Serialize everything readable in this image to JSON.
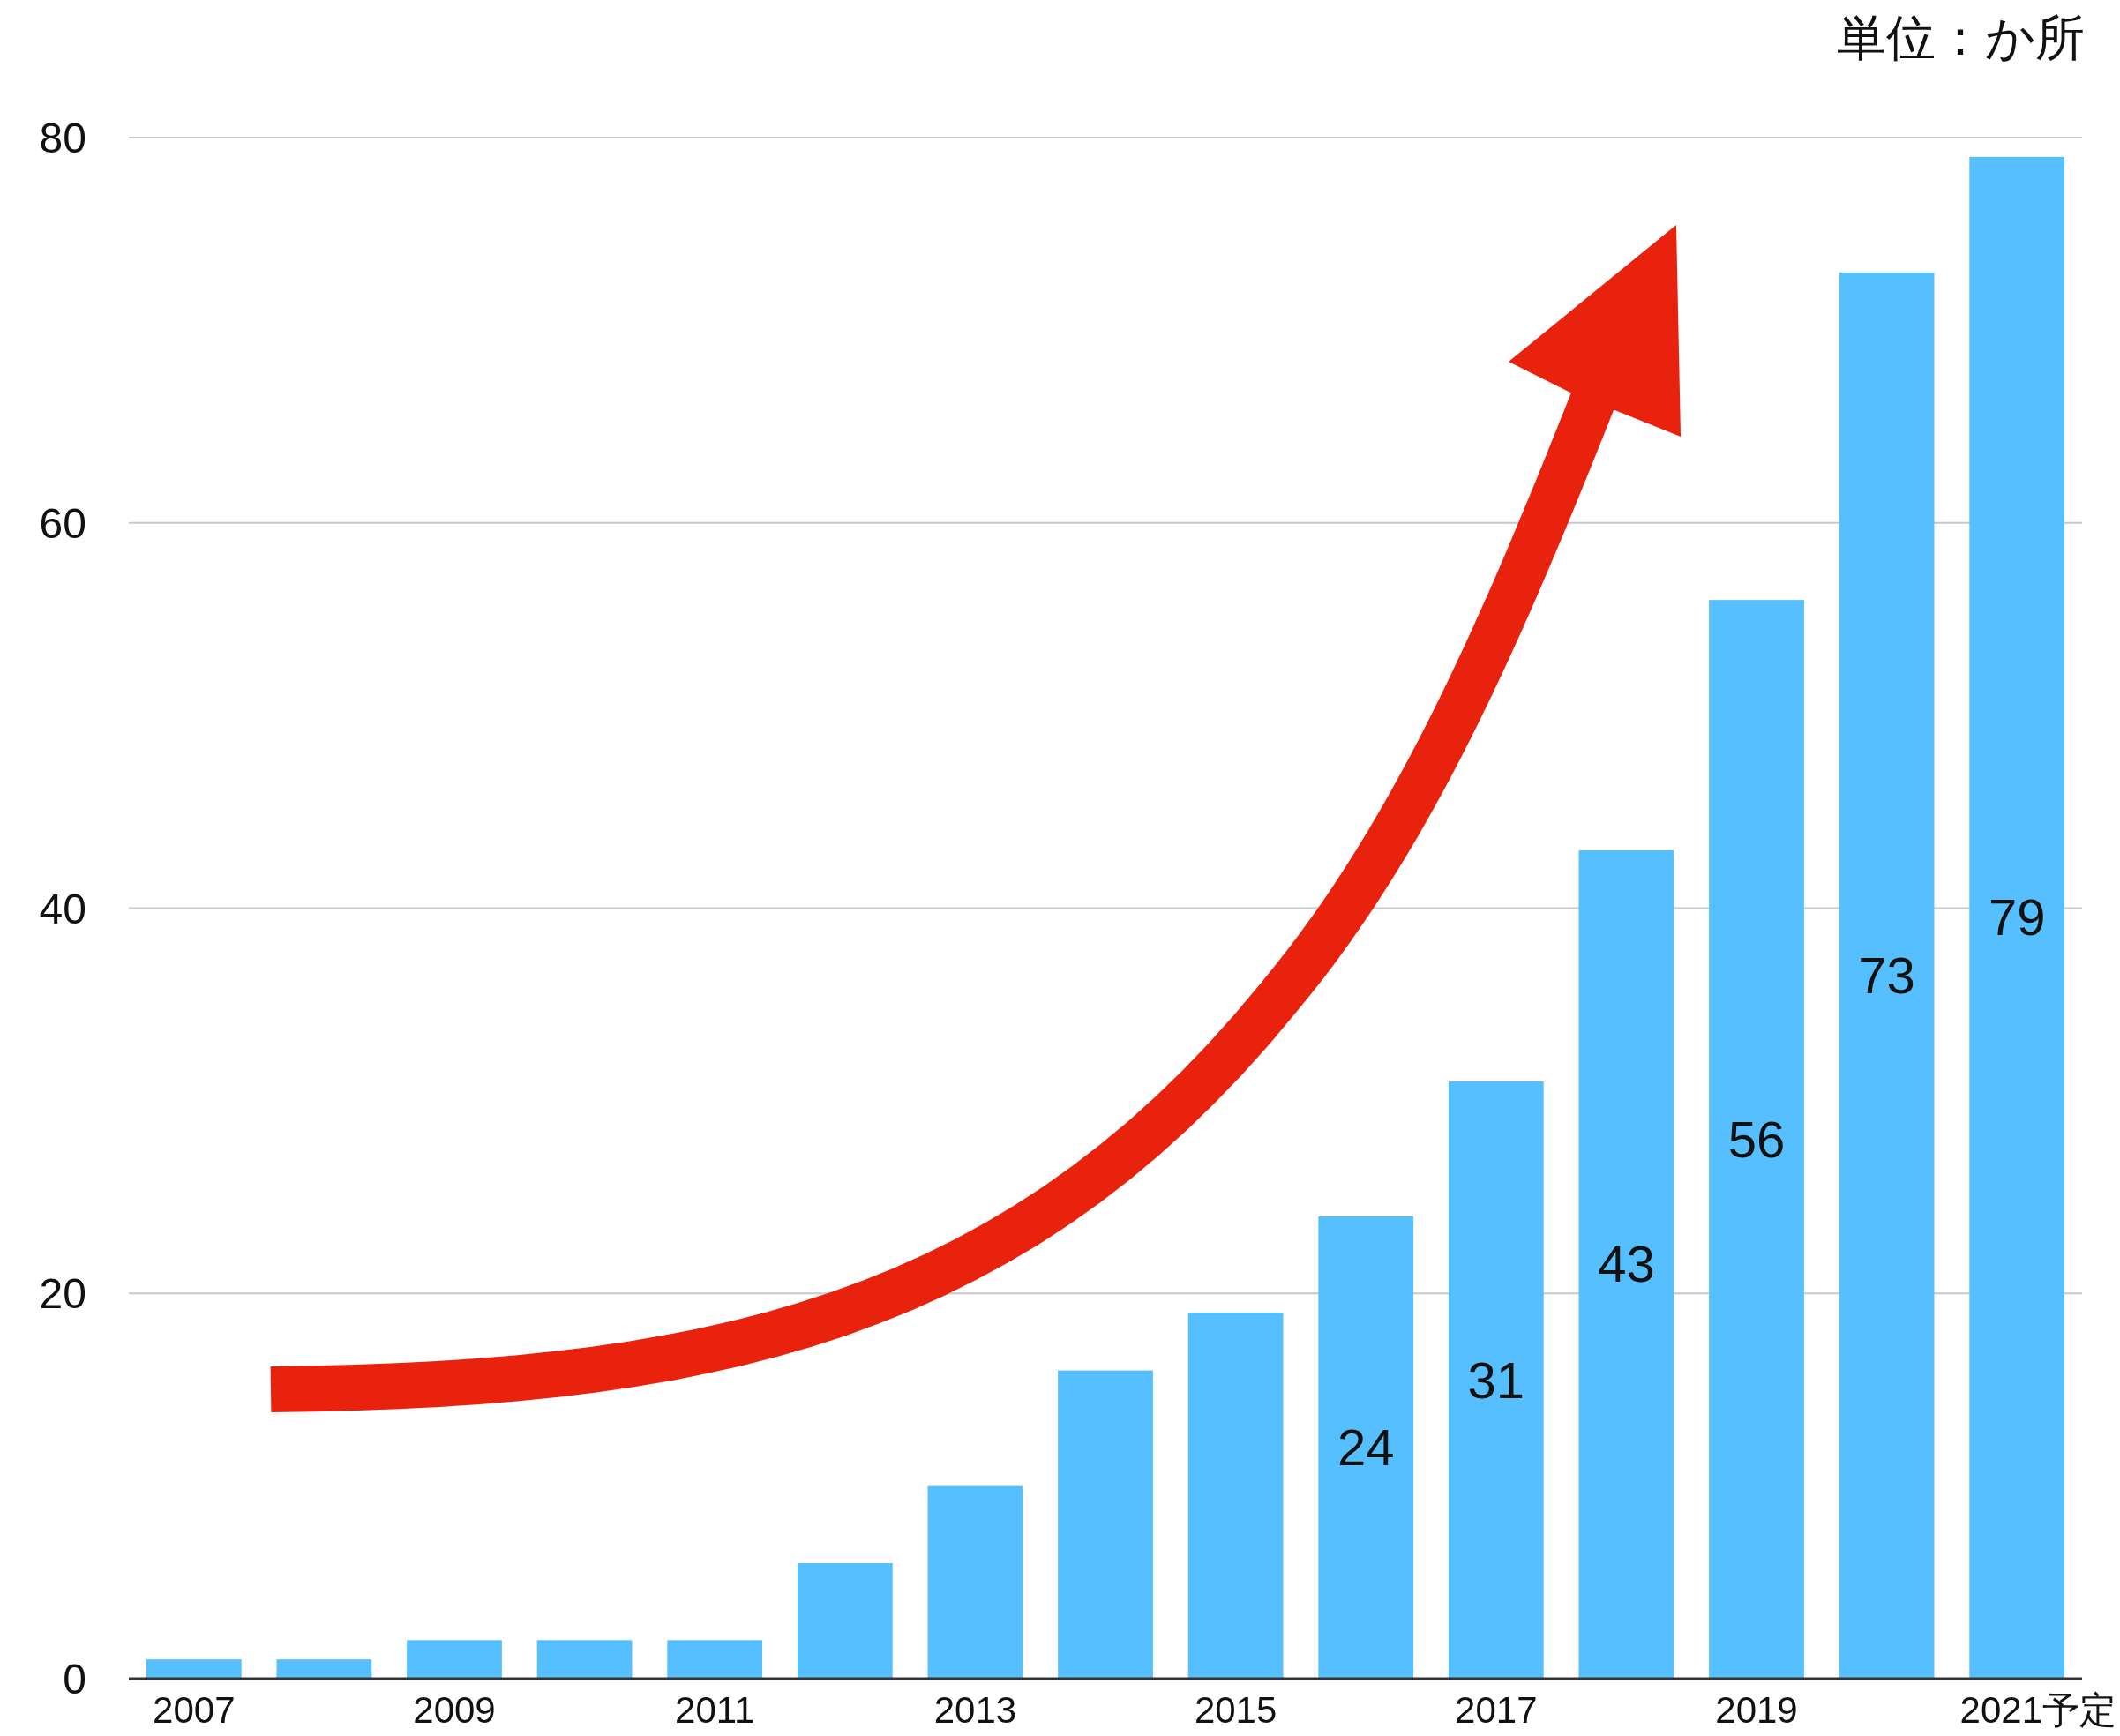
{
  "chart_data": {
    "type": "bar",
    "categories": [
      "2007",
      null,
      "2009",
      null,
      "2011",
      null,
      "2013",
      null,
      "2015",
      null,
      "2017",
      null,
      "2019",
      null,
      "2021予定"
    ],
    "values": [
      1,
      1,
      2,
      2,
      2,
      6,
      10,
      16,
      19,
      24,
      31,
      43,
      56,
      73,
      79
    ],
    "value_labels": [
      null,
      null,
      null,
      null,
      null,
      null,
      null,
      null,
      null,
      "24",
      "31",
      "43",
      "56",
      "73",
      "79"
    ],
    "color": "#55bfff",
    "ylim": [
      0,
      80
    ],
    "yticks": [
      0,
      20,
      40,
      60,
      80
    ],
    "grid": "y",
    "annotations": [
      "単位：か所"
    ]
  }
}
